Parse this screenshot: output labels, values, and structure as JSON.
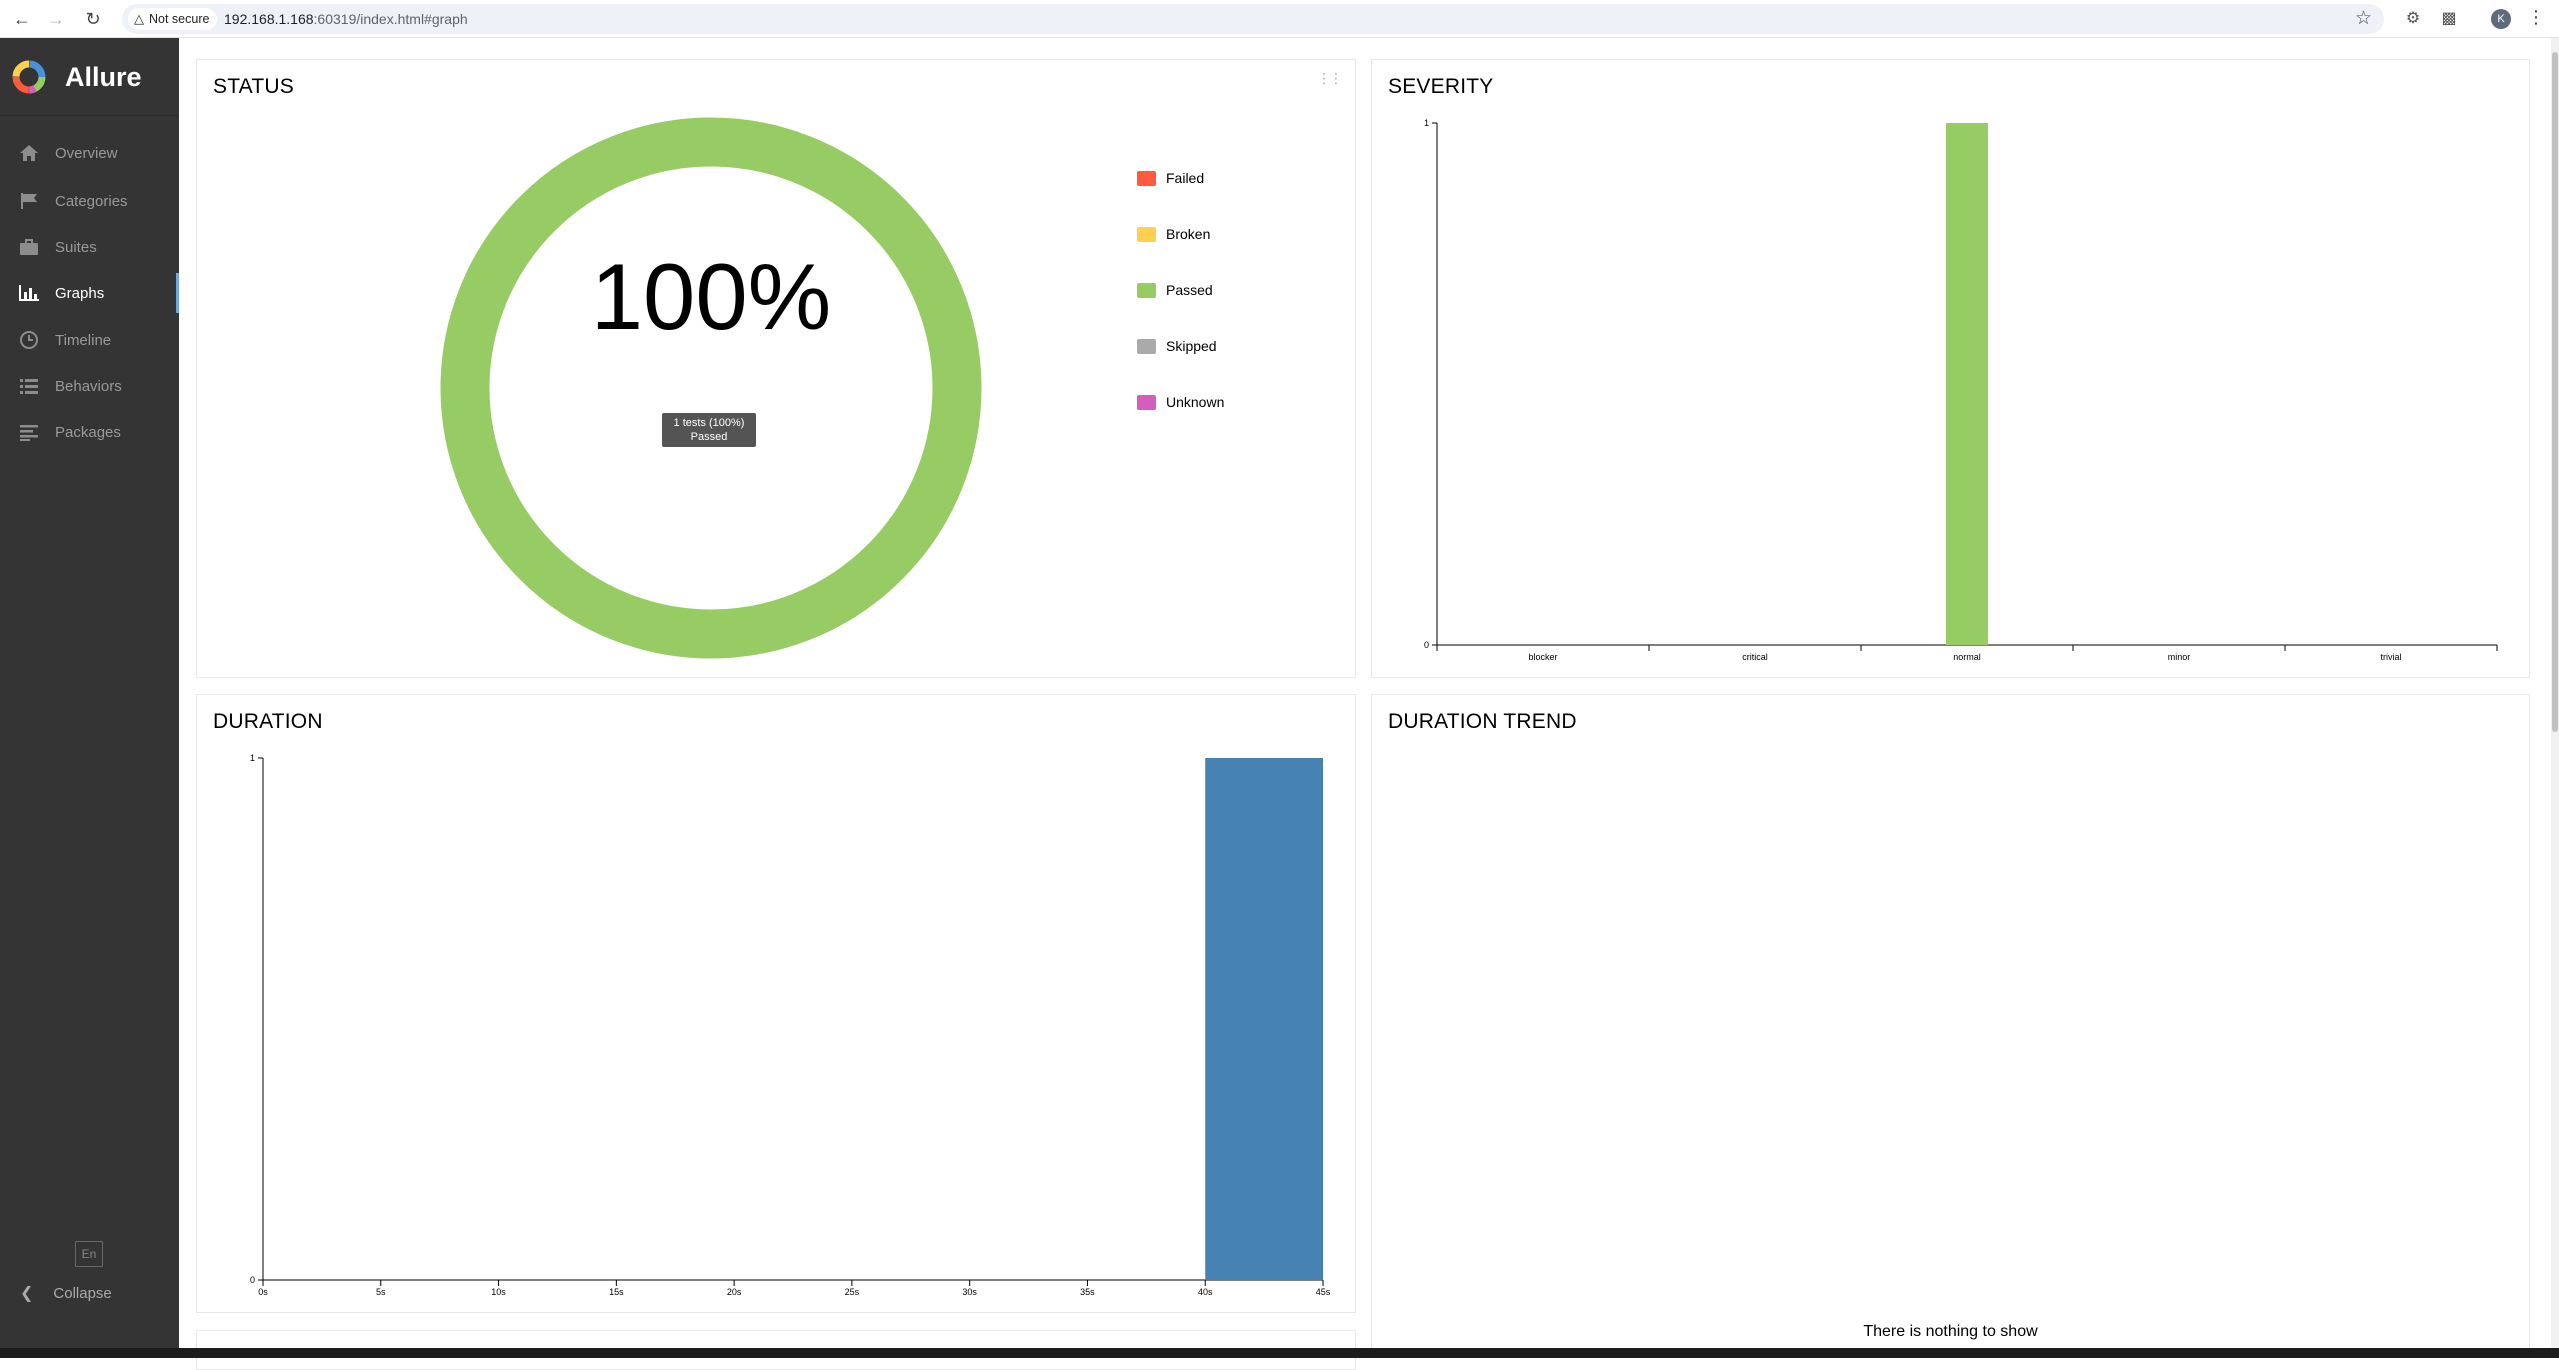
{
  "browser": {
    "security_label": "Not secure",
    "url_host": "192.168.1.168",
    "url_rest": ":60319/index.html#graph",
    "profile_initial": "K"
  },
  "sidebar": {
    "brand": "Allure",
    "items": [
      {
        "label": "Overview",
        "icon": "home-icon"
      },
      {
        "label": "Categories",
        "icon": "flag-icon"
      },
      {
        "label": "Suites",
        "icon": "briefcase-icon"
      },
      {
        "label": "Graphs",
        "icon": "bar-chart-icon",
        "active": true
      },
      {
        "label": "Timeline",
        "icon": "clock-icon"
      },
      {
        "label": "Behaviors",
        "icon": "list-icon"
      },
      {
        "label": "Packages",
        "icon": "align-left-icon"
      }
    ],
    "language": "En",
    "collapse_label": "Collapse"
  },
  "colors": {
    "failed": "#fd5a3e",
    "broken": "#ffd050",
    "passed": "#97cc64",
    "skipped": "#aaaaaa",
    "unknown": "#d35ebe",
    "duration_bar": "#4682b4",
    "sidebar_bg": "#343434",
    "active_marker": "#6fa8dc"
  },
  "widgets": {
    "status": {
      "title": "STATUS",
      "center_text": "100%",
      "tooltip_line1": "1 tests (100%)",
      "tooltip_line2": "Passed",
      "legend": [
        "Failed",
        "Broken",
        "Passed",
        "Skipped",
        "Unknown"
      ]
    },
    "severity": {
      "title": "SEVERITY"
    },
    "duration": {
      "title": "DURATION"
    },
    "duration_trend": {
      "title": "DURATION TREND",
      "empty_message": "There is nothing to show"
    }
  },
  "chart_data": [
    {
      "type": "pie",
      "title": "STATUS",
      "categories": [
        "Failed",
        "Broken",
        "Passed",
        "Skipped",
        "Unknown"
      ],
      "values": [
        0,
        0,
        1,
        0,
        0
      ],
      "center_label": "100%",
      "legend_placement": "right"
    },
    {
      "type": "bar",
      "title": "SEVERITY",
      "categories": [
        "blocker",
        "critical",
        "normal",
        "minor",
        "trivial"
      ],
      "values": [
        0,
        0,
        1,
        0,
        0
      ],
      "ylim": [
        0,
        1
      ],
      "yticks": [
        "0",
        "1"
      ],
      "series_color": "#97cc64",
      "grid": false
    },
    {
      "type": "bar",
      "title": "DURATION",
      "x_ticks": [
        "0s",
        "5s",
        "10s",
        "15s",
        "20s",
        "25s",
        "30s",
        "35s",
        "40s",
        "45s"
      ],
      "bins": [
        {
          "from": 0,
          "to": 5,
          "count": 0
        },
        {
          "from": 5,
          "to": 10,
          "count": 0
        },
        {
          "from": 10,
          "to": 15,
          "count": 0
        },
        {
          "from": 15,
          "to": 20,
          "count": 0
        },
        {
          "from": 20,
          "to": 25,
          "count": 0
        },
        {
          "from": 25,
          "to": 30,
          "count": 0
        },
        {
          "from": 30,
          "to": 35,
          "count": 0
        },
        {
          "from": 35,
          "to": 40,
          "count": 0
        },
        {
          "from": 40,
          "to": 45,
          "count": 1
        }
      ],
      "xlim": [
        0,
        45
      ],
      "ylim": [
        0,
        1
      ],
      "yticks": [
        "0",
        "1"
      ],
      "series_color": "#4682b4",
      "grid": false
    }
  ]
}
